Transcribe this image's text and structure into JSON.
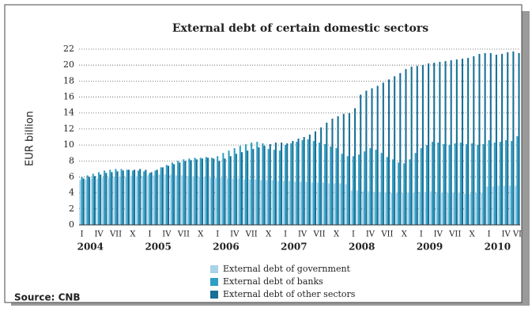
{
  "chart_data": {
    "type": "bar",
    "title": "External debt of certain domestic sectors",
    "y_label": "EUR billion",
    "source": "Source: CNB",
    "categories": [
      "I",
      null,
      null,
      "IV",
      null,
      null,
      "VII",
      null,
      null,
      "X",
      null,
      null,
      "I",
      null,
      null,
      "IV",
      null,
      null,
      "VII",
      null,
      null,
      "X",
      null,
      null,
      "I",
      null,
      null,
      "IV",
      null,
      null,
      "VII",
      null,
      null,
      "X",
      null,
      null,
      "I",
      null,
      null,
      "IV",
      null,
      null,
      "VII",
      null,
      null,
      "X",
      null,
      null,
      "I",
      null,
      null,
      "IV",
      null,
      null,
      "VII",
      null,
      null,
      "X",
      null,
      null,
      "I",
      null,
      null,
      "IV",
      null,
      null,
      "VII",
      null,
      null,
      "X",
      null,
      null,
      "I",
      null,
      null,
      "IV",
      null,
      "VI"
    ],
    "year_labels": [
      "2004",
      "2005",
      "2006",
      "2007",
      "2008",
      "2009",
      "2010"
    ],
    "series": [
      {
        "name": "External debt of government",
        "color": "#a9d3ea",
        "values": [
          5.6,
          5.7,
          5.8,
          5.8,
          5.9,
          5.9,
          6.0,
          6.0,
          6.0,
          6.1,
          6.1,
          6.1,
          6.2,
          6.2,
          6.3,
          6.3,
          6.3,
          6.2,
          6.2,
          6.1,
          6.1,
          6.0,
          6.0,
          5.9,
          5.9,
          5.9,
          5.8,
          5.8,
          5.8,
          5.7,
          5.7,
          5.7,
          5.6,
          5.6,
          5.6,
          5.5,
          5.5,
          5.5,
          5.4,
          5.4,
          5.4,
          5.3,
          5.3,
          5.3,
          5.2,
          5.2,
          5.2,
          5.1,
          4.3,
          4.3,
          4.2,
          4.2,
          4.1,
          4.1,
          4.1,
          4.0,
          4.0,
          4.0,
          4.0,
          4.0,
          4.1,
          4.1,
          4.2,
          4.1,
          4.0,
          4.0,
          4.0,
          4.0,
          3.9,
          3.9,
          4.0,
          4.0,
          4.8,
          4.8,
          4.9,
          4.9,
          4.9,
          4.9
        ]
      },
      {
        "name": "External debt of banks",
        "color": "#2e9fc4",
        "values": [
          6.0,
          6.2,
          6.4,
          6.6,
          6.8,
          6.9,
          7.0,
          7.0,
          6.9,
          6.8,
          6.8,
          6.7,
          6.5,
          6.8,
          7.2,
          7.5,
          7.8,
          8.0,
          8.2,
          8.3,
          8.4,
          8.4,
          8.5,
          8.4,
          8.6,
          9.0,
          9.3,
          9.6,
          9.9,
          10.1,
          10.3,
          10.4,
          10.2,
          9.5,
          9.4,
          9.3,
          10.0,
          10.2,
          10.4,
          10.6,
          10.7,
          10.5,
          10.3,
          10.1,
          9.8,
          9.6,
          8.9,
          8.6,
          8.6,
          8.8,
          9.2,
          9.6,
          9.4,
          9.0,
          8.5,
          8.2,
          7.8,
          7.7,
          8.2,
          9.0,
          9.6,
          10.0,
          10.4,
          10.3,
          10.1,
          10.0,
          10.2,
          10.3,
          10.1,
          10.2,
          10.0,
          10.1,
          10.6,
          10.3,
          10.4,
          10.6,
          10.5,
          11.1
        ]
      },
      {
        "name": "External debt of other sectors",
        "color": "#176f96",
        "values": [
          5.8,
          6.0,
          6.1,
          6.3,
          6.5,
          6.6,
          6.7,
          6.8,
          6.9,
          6.9,
          7.0,
          6.9,
          6.6,
          6.9,
          7.2,
          7.4,
          7.6,
          7.8,
          8.0,
          8.1,
          8.2,
          8.3,
          8.4,
          8.3,
          8.0,
          8.3,
          8.6,
          8.9,
          9.1,
          9.3,
          9.5,
          9.7,
          9.9,
          10.1,
          10.3,
          10.3,
          10.2,
          10.5,
          10.8,
          11.0,
          11.3,
          11.7,
          12.2,
          12.8,
          13.3,
          13.6,
          13.9,
          14.0,
          14.6,
          16.3,
          16.8,
          17.1,
          17.4,
          17.8,
          18.2,
          18.6,
          19.0,
          19.5,
          19.8,
          19.9,
          20.0,
          20.2,
          20.3,
          20.4,
          20.5,
          20.6,
          20.7,
          20.8,
          20.9,
          21.1,
          21.4,
          21.5,
          21.5,
          21.3,
          21.4,
          21.6,
          21.7,
          21.5
        ]
      }
    ],
    "ylim": [
      0,
      22
    ],
    "yticks": [
      0,
      2,
      4,
      6,
      8,
      10,
      12,
      14,
      16,
      18,
      20,
      22
    ],
    "grid": true,
    "legend": "bottom"
  }
}
